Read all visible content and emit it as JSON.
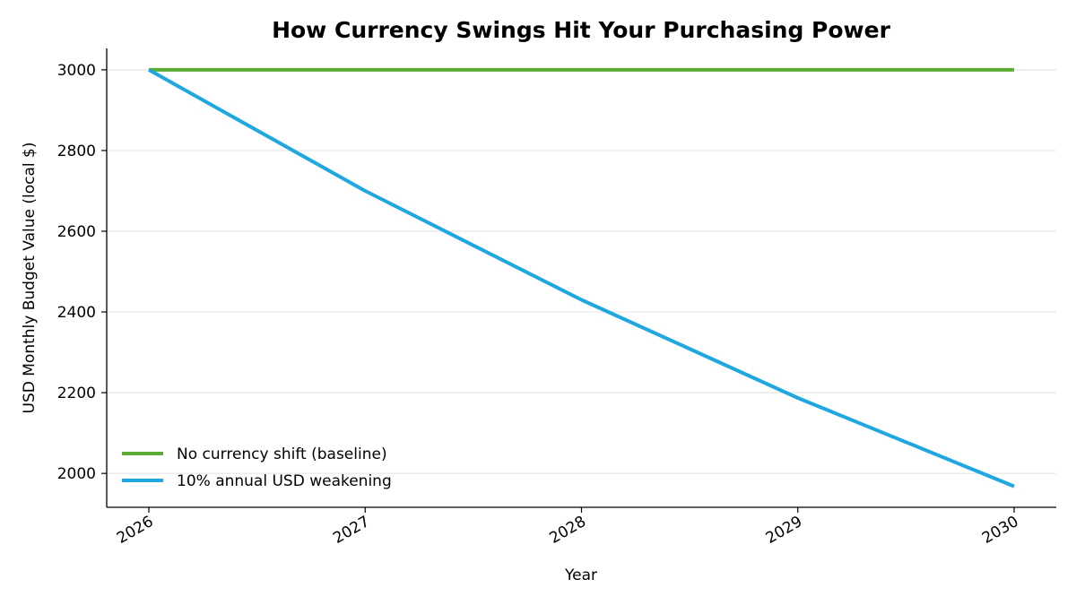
{
  "chart_data": {
    "type": "line",
    "title": "How Currency Swings Hit Your Purchasing Power",
    "xlabel": "Year",
    "ylabel": "USD Monthly Budget Value (local $)",
    "x": [
      2026,
      2027,
      2028,
      2029,
      2030
    ],
    "xtick_labels": [
      "2026",
      "2027",
      "2028",
      "2029",
      "2030"
    ],
    "yticks": [
      2000,
      2200,
      2400,
      2600,
      2800,
      3000
    ],
    "ytick_labels": [
      "2000",
      "2200",
      "2400",
      "2600",
      "2800",
      "3000"
    ],
    "ylim": [
      1916,
      3053
    ],
    "grid": "horizontal",
    "legend_position": "lower-left",
    "series": [
      {
        "name": "No currency shift (baseline)",
        "color": "#5aac32",
        "values": [
          3000,
          3000,
          3000,
          3000,
          3000
        ]
      },
      {
        "name": "10% annual USD weakening",
        "color": "#1ea7e0",
        "values": [
          3000,
          2700,
          2430,
          2187,
          1968
        ]
      }
    ]
  }
}
